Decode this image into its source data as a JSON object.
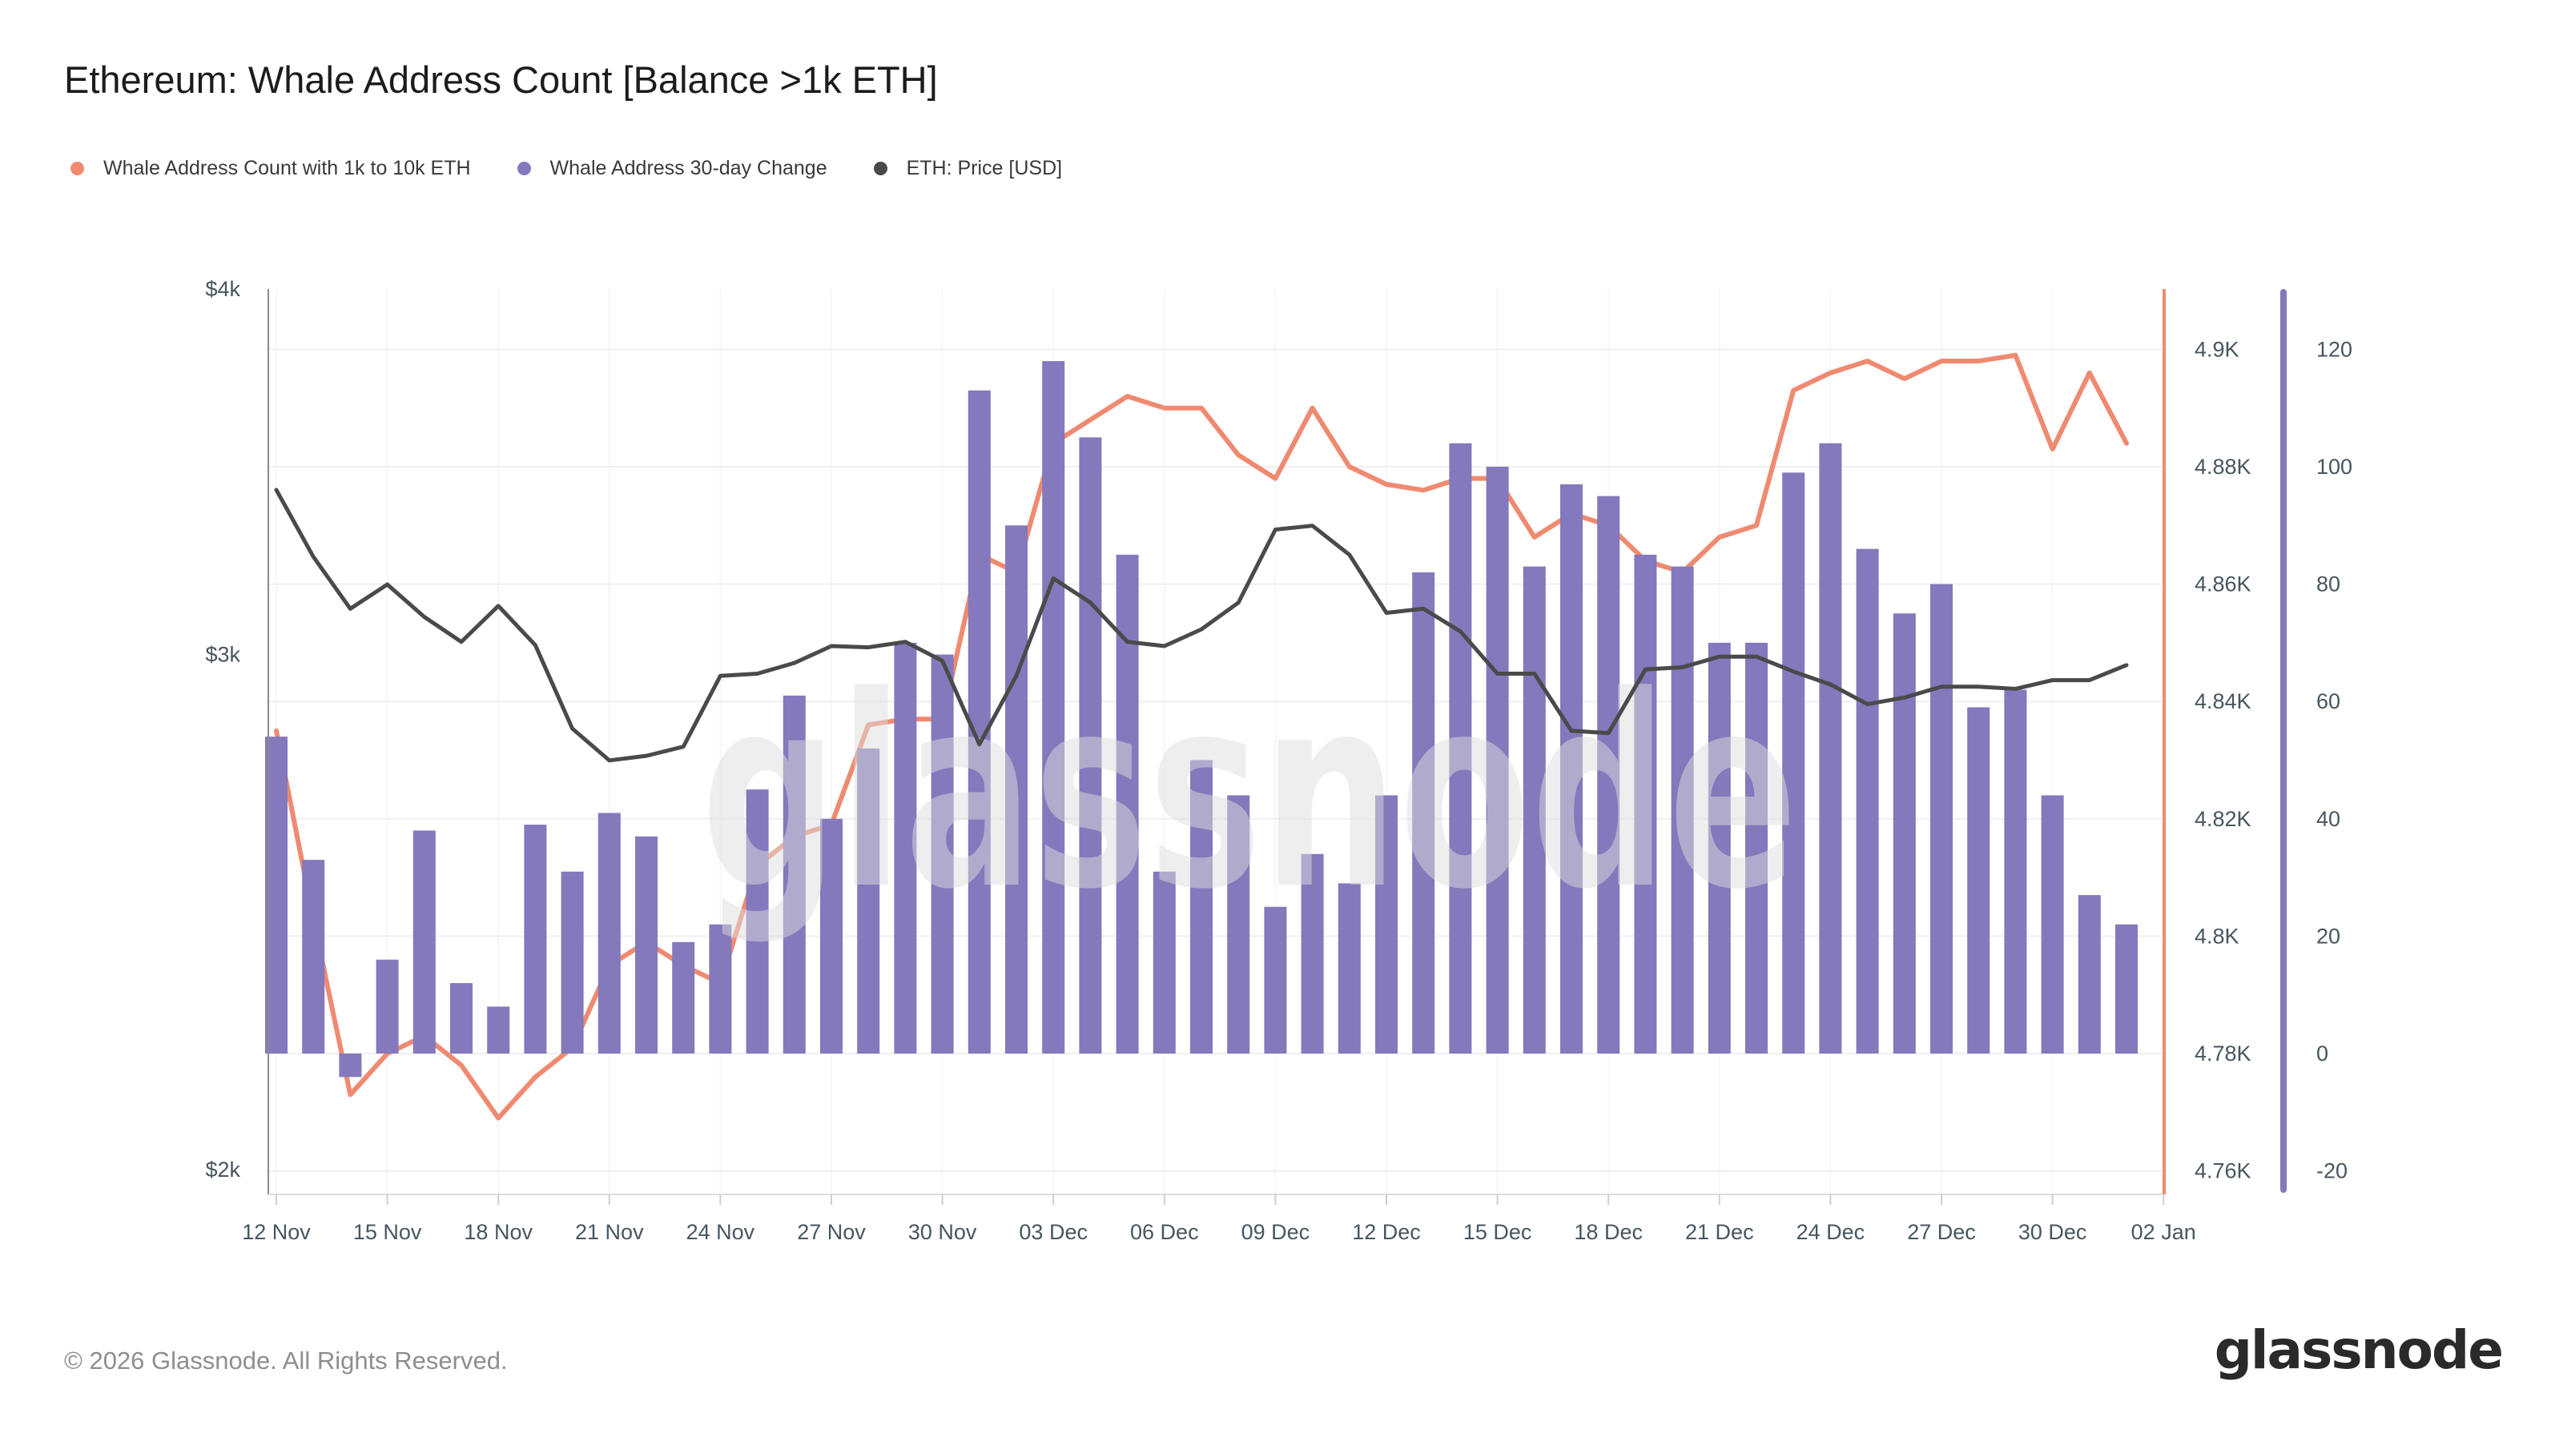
{
  "header": {
    "title": "Ethereum: Whale Address Count [Balance >1k ETH]"
  },
  "legend": [
    {
      "name": "whale-address-count",
      "label": "Whale Address Count with 1k to 10k ETH",
      "color": "#EF8A70"
    },
    {
      "name": "whale-address-30d-change",
      "label": "Whale Address 30-day Change",
      "color": "#8379BC"
    },
    {
      "name": "eth-price",
      "label": "ETH: Price [USD]",
      "color": "#4A4A4A"
    }
  ],
  "watermark": "glassnode",
  "footer": {
    "copyright": "© 2026 Glassnode. All Rights Reserved.",
    "logo_text": "glassnode"
  },
  "chart_data": {
    "type": "combo",
    "title": "Ethereum: Whale Address Count [Balance >1k ETH]",
    "x_dates": [
      "12 Nov",
      "13 Nov",
      "14 Nov",
      "15 Nov",
      "16 Nov",
      "17 Nov",
      "18 Nov",
      "19 Nov",
      "20 Nov",
      "21 Nov",
      "22 Nov",
      "23 Nov",
      "24 Nov",
      "25 Nov",
      "26 Nov",
      "27 Nov",
      "28 Nov",
      "29 Nov",
      "30 Nov",
      "01 Dec",
      "02 Dec",
      "03 Dec",
      "04 Dec",
      "05 Dec",
      "06 Dec",
      "07 Dec",
      "08 Dec",
      "09 Dec",
      "10 Dec",
      "11 Dec",
      "12 Dec",
      "13 Dec",
      "14 Dec",
      "15 Dec",
      "16 Dec",
      "17 Dec",
      "18 Dec",
      "19 Dec",
      "20 Dec",
      "21 Dec",
      "22 Dec",
      "23 Dec",
      "24 Dec",
      "25 Dec",
      "26 Dec",
      "27 Dec",
      "28 Dec",
      "29 Dec",
      "30 Dec",
      "31 Dec",
      "01 Jan"
    ],
    "x_tick_labels": [
      "12 Nov",
      "15 Nov",
      "18 Nov",
      "21 Nov",
      "24 Nov",
      "27 Nov",
      "30 Nov",
      "03 Dec",
      "06 Dec",
      "09 Dec",
      "12 Dec",
      "15 Dec",
      "18 Dec",
      "21 Dec",
      "24 Dec",
      "27 Dec",
      "30 Dec",
      "02 Jan"
    ],
    "series": [
      {
        "name": "Whale Address Count with 1k to 10k ETH",
        "type": "line",
        "axis": "right_count",
        "color": "#EF8A70",
        "values": [
          4835,
          4803,
          4773,
          4780,
          4783,
          4778,
          4769,
          4776,
          4781,
          4795,
          4799,
          4795,
          4792,
          4812,
          4817,
          4819,
          4836,
          4837,
          4837,
          4865,
          4862,
          4884,
          4888,
          4892,
          4890,
          4890,
          4882,
          4878,
          4890,
          4880,
          4877,
          4876,
          4878,
          4878,
          4868,
          4872,
          4870,
          4864,
          4862,
          4868,
          4870,
          4893,
          4896,
          4898,
          4895,
          4898,
          4898,
          4899,
          4883,
          4896,
          4884
        ]
      },
      {
        "name": "Whale Address 30-day Change",
        "type": "bar",
        "axis": "right_change",
        "color": "#8379BC",
        "values": [
          54,
          33,
          -4,
          16,
          38,
          12,
          8,
          39,
          31,
          41,
          37,
          19,
          22,
          45,
          61,
          40,
          52,
          70,
          68,
          113,
          90,
          118,
          105,
          85,
          31,
          50,
          44,
          25,
          34,
          29,
          44,
          82,
          104,
          100,
          83,
          97,
          95,
          85,
          83,
          70,
          70,
          99,
          104,
          86,
          75,
          80,
          59,
          62,
          44,
          27,
          22
        ]
      },
      {
        "name": "ETH: Price [USD]",
        "type": "line",
        "axis": "left_price",
        "color": "#4A4A4A",
        "values": [
          3415,
          3240,
          3110,
          3170,
          3090,
          3030,
          3117,
          3022,
          2830,
          2760,
          2770,
          2790,
          2950,
          2955,
          2980,
          3020,
          3017,
          3030,
          2985,
          2795,
          2950,
          3185,
          3125,
          3030,
          3020,
          3060,
          3125,
          3310,
          3320,
          3245,
          3100,
          3110,
          3055,
          2955,
          2955,
          2825,
          2820,
          2965,
          2970,
          2995,
          2995,
          2960,
          2930,
          2885,
          2900,
          2925,
          2925,
          2920,
          2940,
          2940,
          2975
        ]
      }
    ],
    "axes": {
      "left_price": {
        "scale": "log",
        "tick_labels": [
          "$4k",
          "$3k",
          "$2k"
        ],
        "tick_values": [
          4000,
          3000,
          2000
        ],
        "range": [
          2000,
          4000
        ]
      },
      "right_count": {
        "scale": "linear",
        "tick_labels": [
          "4.9K",
          "4.88K",
          "4.86K",
          "4.84K",
          "4.82K",
          "4.8K",
          "4.78K",
          "4.76K"
        ],
        "tick_values": [
          4900,
          4880,
          4860,
          4840,
          4820,
          4800,
          4780,
          4760
        ]
      },
      "right_change": {
        "scale": "linear",
        "tick_labels": [
          "120",
          "100",
          "80",
          "60",
          "40",
          "20",
          "0",
          "-20"
        ],
        "tick_values": [
          120,
          100,
          80,
          60,
          40,
          20,
          0,
          -20
        ]
      },
      "grid": true,
      "legend_position": "top-left"
    }
  }
}
